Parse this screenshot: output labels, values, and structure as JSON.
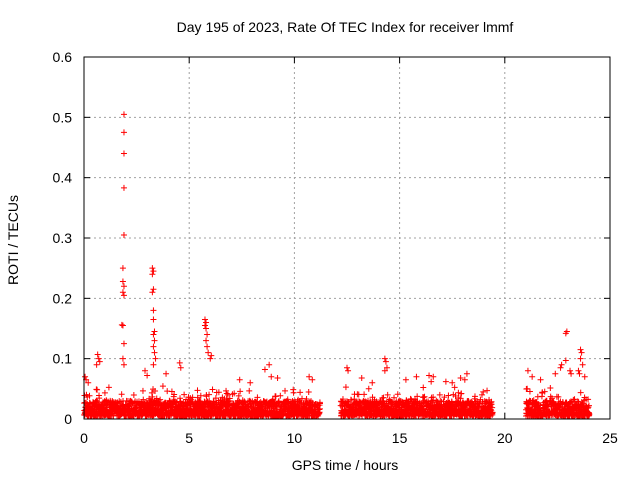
{
  "chart_data": {
    "type": "scatter",
    "title": "Day 195 of 2023, Rate Of TEC Index for receiver lmmf",
    "xlabel": "GPS time / hours",
    "ylabel": "ROTI / TECUs",
    "xlim": [
      0,
      25
    ],
    "ylim": [
      0,
      0.6
    ],
    "xticks": [
      "0",
      "5",
      "10",
      "15",
      "20",
      "25"
    ],
    "yticks": [
      "0",
      "0.1",
      "0.2",
      "0.3",
      "0.4",
      "0.5",
      "0.6"
    ],
    "grid": true,
    "marker": "+",
    "color": "#ff0000",
    "coverage_segments_hours": [
      [
        0.0,
        11.2
      ],
      [
        12.2,
        19.4
      ],
      [
        21.0,
        24.0
      ]
    ],
    "baseline_range_tecu": [
      0.005,
      0.03
    ],
    "series": [
      {
        "name": "ROTI",
        "points": [
          [
            1.9,
            0.505
          ],
          [
            1.9,
            0.475
          ],
          [
            1.9,
            0.44
          ],
          [
            1.9,
            0.383
          ],
          [
            1.9,
            0.305
          ],
          [
            1.85,
            0.25
          ],
          [
            1.85,
            0.228
          ],
          [
            1.9,
            0.22
          ],
          [
            1.85,
            0.21
          ],
          [
            1.9,
            0.205
          ],
          [
            1.8,
            0.156
          ],
          [
            1.85,
            0.155
          ],
          [
            1.9,
            0.125
          ],
          [
            1.85,
            0.1
          ],
          [
            1.9,
            0.09
          ],
          [
            3.25,
            0.25
          ],
          [
            3.3,
            0.245
          ],
          [
            3.25,
            0.24
          ],
          [
            3.3,
            0.215
          ],
          [
            3.25,
            0.21
          ],
          [
            3.3,
            0.18
          ],
          [
            3.3,
            0.165
          ],
          [
            3.35,
            0.145
          ],
          [
            3.3,
            0.14
          ],
          [
            3.35,
            0.13
          ],
          [
            3.3,
            0.12
          ],
          [
            3.35,
            0.11
          ],
          [
            3.4,
            0.1
          ],
          [
            3.3,
            0.09
          ],
          [
            5.75,
            0.165
          ],
          [
            5.8,
            0.16
          ],
          [
            5.75,
            0.155
          ],
          [
            5.8,
            0.15
          ],
          [
            5.85,
            0.14
          ],
          [
            5.8,
            0.13
          ],
          [
            5.85,
            0.12
          ],
          [
            5.9,
            0.11
          ],
          [
            6.05,
            0.105
          ],
          [
            6.0,
            0.1
          ],
          [
            0.65,
            0.107
          ],
          [
            0.7,
            0.1
          ],
          [
            0.6,
            0.09
          ],
          [
            0.75,
            0.095
          ],
          [
            0.05,
            0.07
          ],
          [
            0.1,
            0.065
          ],
          [
            0.2,
            0.06
          ],
          [
            4.55,
            0.093
          ],
          [
            4.6,
            0.085
          ],
          [
            2.9,
            0.08
          ],
          [
            3.0,
            0.072
          ],
          [
            3.9,
            0.075
          ],
          [
            8.8,
            0.09
          ],
          [
            8.6,
            0.082
          ],
          [
            8.9,
            0.07
          ],
          [
            9.2,
            0.068
          ],
          [
            10.7,
            0.07
          ],
          [
            10.85,
            0.065
          ],
          [
            7.4,
            0.065
          ],
          [
            7.9,
            0.06
          ],
          [
            12.5,
            0.085
          ],
          [
            12.55,
            0.08
          ],
          [
            13.2,
            0.068
          ],
          [
            13.7,
            0.06
          ],
          [
            14.3,
            0.1
          ],
          [
            14.35,
            0.095
          ],
          [
            14.4,
            0.085
          ],
          [
            14.3,
            0.08
          ],
          [
            15.3,
            0.065
          ],
          [
            15.8,
            0.07
          ],
          [
            16.4,
            0.072
          ],
          [
            16.6,
            0.07
          ],
          [
            16.5,
            0.062
          ],
          [
            17.2,
            0.062
          ],
          [
            17.5,
            0.06
          ],
          [
            17.9,
            0.068
          ],
          [
            18.2,
            0.075
          ],
          [
            18.1,
            0.065
          ],
          [
            21.1,
            0.08
          ],
          [
            21.3,
            0.07
          ],
          [
            21.7,
            0.065
          ],
          [
            22.4,
            0.075
          ],
          [
            22.65,
            0.085
          ],
          [
            22.7,
            0.09
          ],
          [
            22.9,
            0.142
          ],
          [
            22.95,
            0.145
          ],
          [
            22.9,
            0.097
          ],
          [
            23.1,
            0.08
          ],
          [
            23.15,
            0.075
          ],
          [
            23.5,
            0.08
          ],
          [
            23.6,
            0.115
          ],
          [
            23.65,
            0.11
          ],
          [
            23.6,
            0.1
          ],
          [
            23.7,
            0.09
          ],
          [
            23.55,
            0.075
          ],
          [
            23.8,
            0.07
          ]
        ]
      }
    ]
  }
}
